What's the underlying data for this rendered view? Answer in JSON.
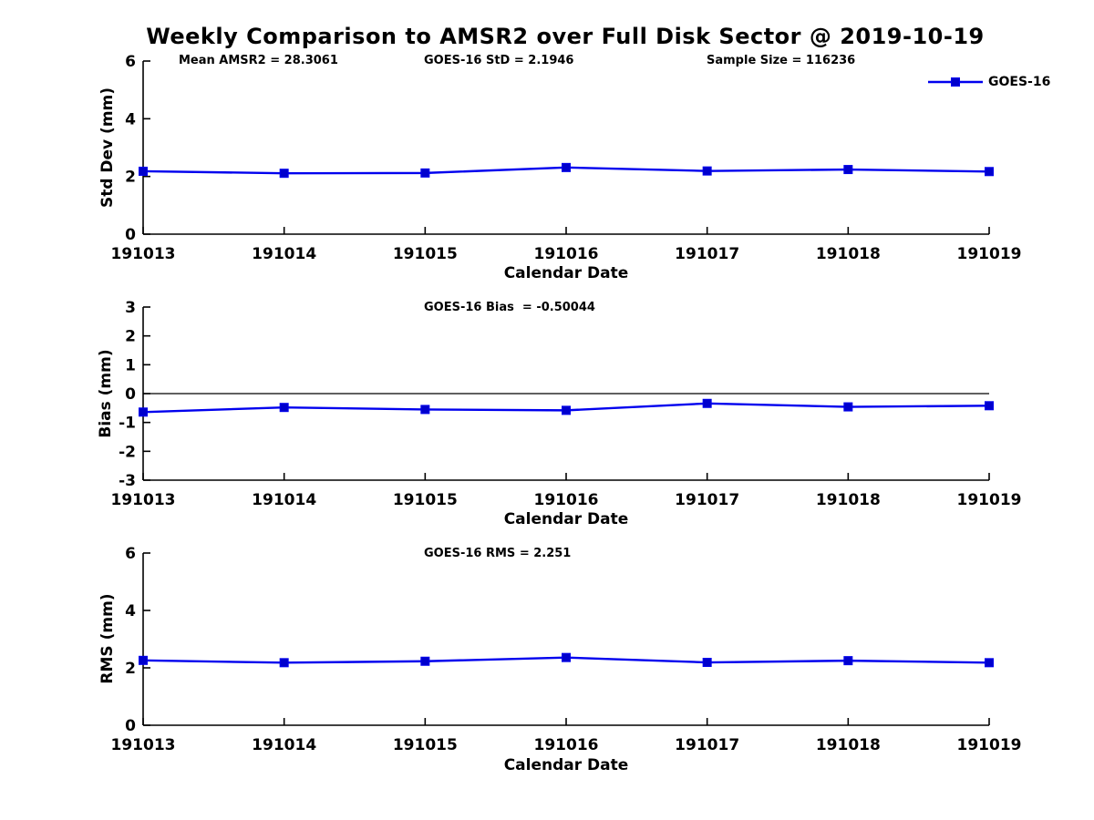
{
  "title": "Weekly Comparison to AMSR2 over Full Disk Sector @ 2019-10-19",
  "legend": {
    "label": "GOES-16"
  },
  "colors": {
    "line": "#0000ee",
    "marker": "#0000cd",
    "axis": "#000000"
  },
  "chart_data": [
    {
      "type": "line",
      "key": "std-dev",
      "ylabel": "Std Dev (mm)",
      "xlabel": "Calendar Date",
      "categories": [
        "191013",
        "191014",
        "191015",
        "191016",
        "191017",
        "191018",
        "191019"
      ],
      "series": [
        {
          "name": "GOES-16",
          "values": [
            2.18,
            2.11,
            2.12,
            2.31,
            2.19,
            2.24,
            2.17
          ]
        }
      ],
      "ylim": [
        0,
        6
      ],
      "yticks": [
        0,
        2,
        4,
        6
      ],
      "zero_line": false,
      "grid": false,
      "legend_position": "top-right",
      "annotations": [
        "Mean AMSR2 = 28.3061",
        "GOES-16 StD = 2.1946",
        "Sample Size = 116236"
      ]
    },
    {
      "type": "line",
      "key": "bias",
      "ylabel": "Bias (mm)",
      "xlabel": "Calendar Date",
      "categories": [
        "191013",
        "191014",
        "191015",
        "191016",
        "191017",
        "191018",
        "191019"
      ],
      "series": [
        {
          "name": "GOES-16",
          "values": [
            -0.64,
            -0.48,
            -0.55,
            -0.58,
            -0.34,
            -0.46,
            -0.42
          ]
        }
      ],
      "ylim": [
        -3,
        3
      ],
      "yticks": [
        -3,
        -2,
        -1,
        0,
        1,
        2,
        3
      ],
      "zero_line": true,
      "grid": false,
      "annotations": [
        "GOES-16 Bias  = -0.50044"
      ]
    },
    {
      "type": "line",
      "key": "rms",
      "ylabel": "RMS (mm)",
      "xlabel": "Calendar Date",
      "categories": [
        "191013",
        "191014",
        "191015",
        "191016",
        "191017",
        "191018",
        "191019"
      ],
      "series": [
        {
          "name": "GOES-16",
          "values": [
            2.26,
            2.18,
            2.23,
            2.36,
            2.19,
            2.25,
            2.18
          ]
        }
      ],
      "ylim": [
        0,
        6
      ],
      "yticks": [
        0,
        2,
        4,
        6
      ],
      "zero_line": false,
      "grid": false,
      "annotations": [
        "GOES-16 RMS = 2.251"
      ]
    }
  ]
}
